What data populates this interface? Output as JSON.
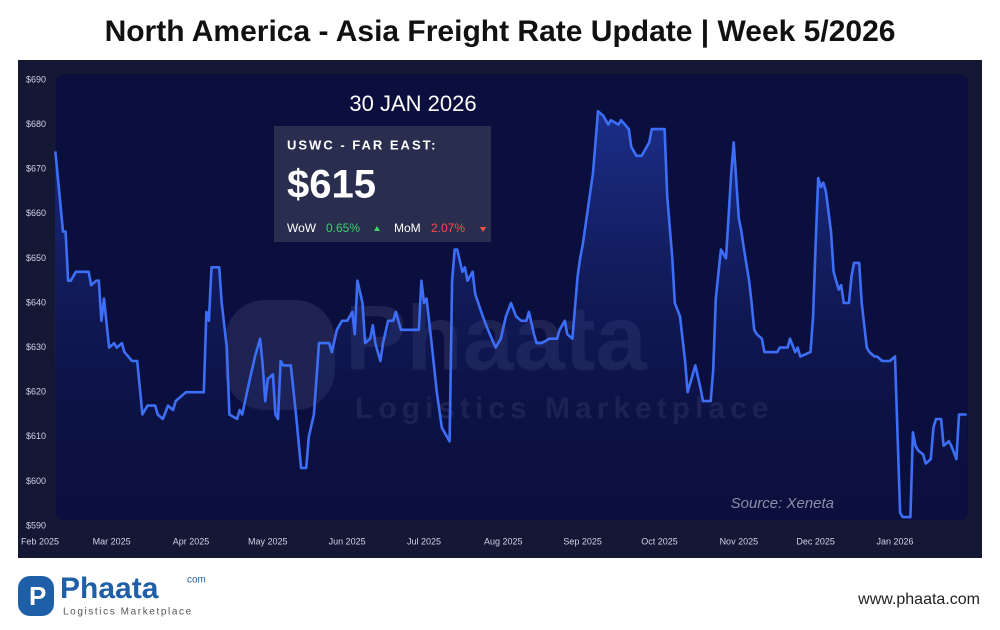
{
  "header": {
    "title": "North America - Asia Freight Rate Update | Week 5/2026"
  },
  "chart_data": {
    "type": "line",
    "x": [
      6,
      7,
      9,
      10,
      11,
      12,
      14,
      19,
      20,
      22,
      23,
      24,
      25,
      27,
      29,
      30,
      32,
      33,
      36,
      38,
      40,
      41,
      42,
      45,
      46,
      48,
      50,
      52,
      53,
      57,
      61,
      64,
      65,
      66,
      67,
      69,
      70,
      71,
      73,
      74,
      77,
      78,
      79,
      82,
      84,
      86,
      87,
      88,
      89,
      91,
      92,
      93,
      94,
      95,
      98,
      100,
      102,
      104,
      105,
      107,
      109,
      113,
      114,
      116,
      118,
      120,
      122,
      123,
      124,
      126,
      127,
      129,
      130,
      131,
      133,
      134,
      136,
      138,
      139,
      141,
      148,
      149,
      150,
      151,
      153,
      155,
      157,
      160,
      161,
      162,
      163,
      165,
      166,
      167,
      169,
      170,
      173,
      175,
      178,
      180,
      182,
      184,
      186,
      188,
      190,
      191,
      193,
      194,
      196,
      199,
      202,
      203,
      205,
      206,
      208,
      209,
      210,
      211,
      212,
      214,
      216,
      217,
      218,
      220,
      221,
      222,
      223,
      226,
      227,
      230,
      231,
      233,
      235,
      237,
      238,
      239,
      241,
      244,
      245,
      247,
      248,
      250,
      252,
      253,
      254,
      256,
      258,
      259,
      262,
      263,
      264,
      266,
      268,
      270,
      271,
      273,
      274,
      275,
      277,
      278,
      279,
      280,
      282,
      283,
      288,
      289,
      292,
      293,
      295,
      296,
      297,
      301,
      302,
      303,
      304,
      305,
      306,
      307,
      309,
      310,
      312,
      313,
      314,
      316,
      317,
      318,
      320,
      321,
      323,
      324,
      326,
      327,
      329,
      330,
      332,
      334,
      335,
      336,
      337,
      339,
      340,
      341,
      342,
      343,
      345,
      346,
      348,
      349,
      350,
      352,
      353,
      355,
      356,
      358,
      359,
      360,
      362
    ],
    "series": [
      {
        "name": "USWC - FAR EAST",
        "color": "#3d6ef7",
        "values": [
          674,
          668,
          656,
          656,
          645,
          645,
          647,
          647,
          644,
          645,
          645,
          636,
          641,
          630,
          631,
          630,
          631,
          629,
          627,
          627,
          615,
          616,
          617,
          617,
          615,
          614,
          617,
          616,
          618,
          620,
          620,
          620,
          638,
          636,
          648,
          648,
          648,
          640,
          630,
          615,
          614,
          616,
          615,
          623,
          628,
          632,
          626,
          618,
          623,
          624,
          615,
          614,
          627,
          626,
          626,
          615,
          603,
          603,
          610,
          615,
          631,
          631,
          629,
          634,
          636,
          636,
          638,
          633,
          645,
          640,
          631,
          632,
          635,
          631,
          627,
          631,
          636,
          636,
          638,
          634,
          634,
          645,
          640,
          641,
          631,
          620,
          612,
          609,
          645,
          652,
          652,
          647,
          648,
          645,
          647,
          642,
          637,
          634,
          630,
          632,
          637,
          640,
          637,
          636,
          636,
          638,
          633,
          631,
          631,
          632,
          632,
          634,
          636,
          633,
          632,
          639,
          646,
          650,
          653,
          661,
          669,
          676,
          683,
          682,
          681,
          680,
          681,
          680,
          681,
          679,
          675,
          673,
          673,
          675,
          676,
          679,
          679,
          679,
          664,
          650,
          640,
          637,
          627,
          620,
          622,
          626,
          621,
          618,
          618,
          625,
          641,
          652,
          650,
          669,
          676,
          659,
          656,
          652,
          645,
          640,
          634,
          633,
          632,
          629,
          629,
          630,
          630,
          632,
          629,
          630,
          628,
          629,
          637,
          653,
          668,
          666,
          667,
          665,
          656,
          647,
          643,
          644,
          640,
          640,
          646,
          649,
          649,
          640,
          630,
          629,
          628,
          628,
          627,
          627,
          627,
          628,
          610,
          593,
          592,
          592,
          592,
          611,
          608,
          607,
          606,
          604,
          605,
          612,
          614,
          614,
          608,
          609,
          608,
          605,
          615,
          615,
          615
        ]
      }
    ],
    "xlim": [
      -6,
      364
    ],
    "xticks": [
      {
        "value": 0,
        "label": "Feb 2025"
      },
      {
        "value": 28,
        "label": "Mar 2025"
      },
      {
        "value": 59,
        "label": "Apr 2025"
      },
      {
        "value": 89,
        "label": "May 2025"
      },
      {
        "value": 120,
        "label": "Jun 2025"
      },
      {
        "value": 150,
        "label": "Jul 2025"
      },
      {
        "value": 181,
        "label": "Aug 2025"
      },
      {
        "value": 212,
        "label": "Sep 2025"
      },
      {
        "value": 242,
        "label": "Oct 2025"
      },
      {
        "value": 273,
        "label": "Nov 2025"
      },
      {
        "value": 303,
        "label": "Dec 2025"
      },
      {
        "value": 334,
        "label": "Jan 2026"
      }
    ],
    "ylim": [
      590,
      690
    ],
    "yticks": [
      {
        "value": 590,
        "label": "$590"
      },
      {
        "value": 600,
        "label": "$600"
      },
      {
        "value": 610,
        "label": "$610"
      },
      {
        "value": 620,
        "label": "$620"
      },
      {
        "value": 630,
        "label": "$630"
      },
      {
        "value": 640,
        "label": "$640"
      },
      {
        "value": 650,
        "label": "$650"
      },
      {
        "value": 660,
        "label": "$660"
      },
      {
        "value": 670,
        "label": "$670"
      },
      {
        "value": 680,
        "label": "$680"
      },
      {
        "value": 690,
        "label": "$690"
      }
    ],
    "annotations": {
      "date": "30 JAN 2026",
      "route": "USWC - FAR EAST:",
      "price": "$615",
      "wow_label": "WoW",
      "wow": "0.65%",
      "mom_label": "MoM",
      "mom": "2.07%",
      "source": "Source: Xeneta"
    },
    "watermark": {
      "brand": "Phaata",
      "tagline": "Logistics Marketplace"
    }
  },
  "footer": {
    "brand": "Phaata",
    "suffix": "com",
    "tagline": "Logistics Marketplace",
    "website": "www.phaata.com"
  }
}
